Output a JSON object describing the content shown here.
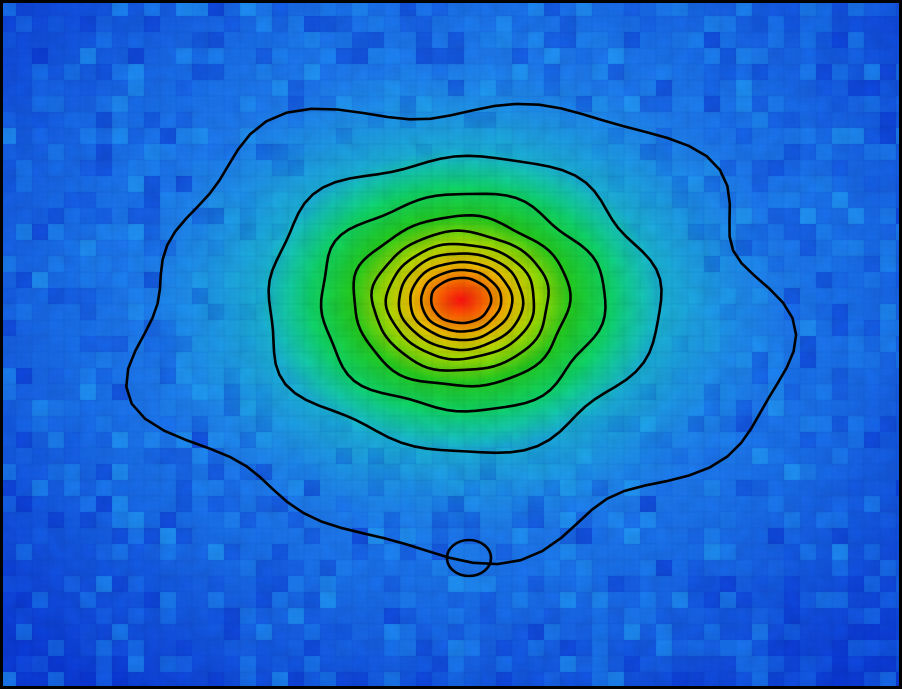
{
  "chart_data": {
    "type": "heatmap",
    "title": "",
    "xlabel": "",
    "ylabel": "",
    "colormap": [
      "#0a2fd6",
      "#1f7fff",
      "#22c9f0",
      "#10e0a0",
      "#10cc30",
      "#b8e000",
      "#f0c000",
      "#ff7000",
      "#ff1010"
    ],
    "grid": false,
    "legend": "none",
    "peak": {
      "x": 0.0,
      "y": 0.0,
      "value": 1.0
    },
    "contours": [
      {
        "level": 1,
        "color": "#000000"
      },
      {
        "level": 2,
        "color": "#000000"
      },
      {
        "level": 3,
        "color": "#000000"
      },
      {
        "level": 4,
        "color": "#000000"
      },
      {
        "level": 5,
        "color": "#000000"
      },
      {
        "level": 6,
        "color": "#000000"
      },
      {
        "level": 7,
        "color": "#000000"
      },
      {
        "level": 8,
        "color": "#000000"
      },
      {
        "level": 9,
        "color": "#000000"
      },
      {
        "level": 10,
        "color": "#000000"
      }
    ],
    "secondary_contour": {
      "x": 0.02,
      "y": -0.8
    }
  }
}
